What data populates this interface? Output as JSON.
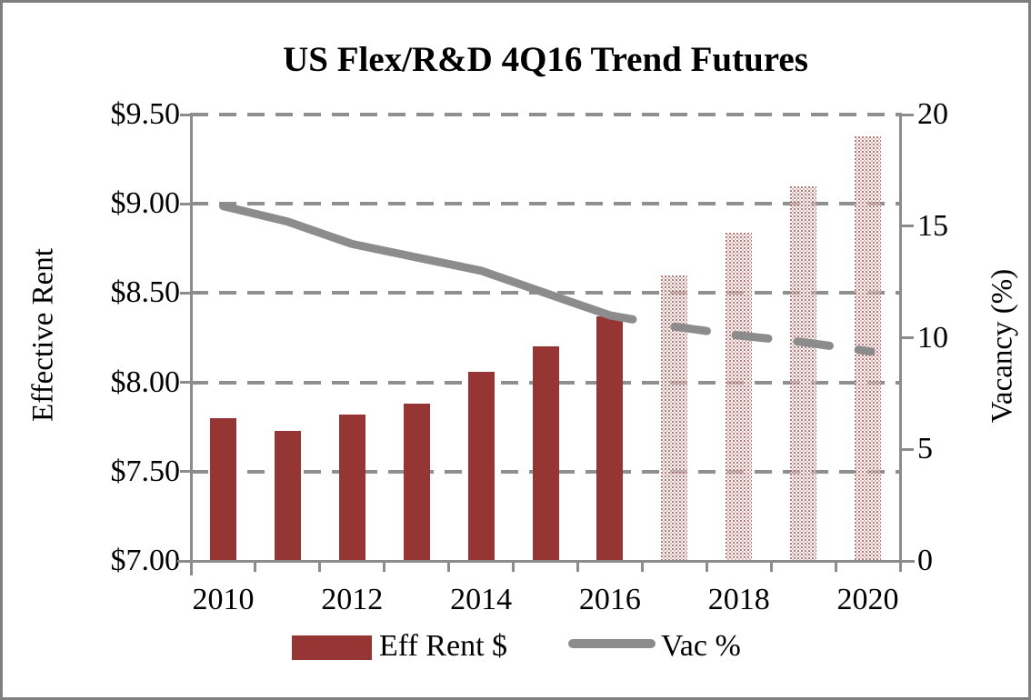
{
  "chart_data": {
    "type": "bar",
    "subtype": "combo-bar-line-dual-axis",
    "title": "US Flex/R&D 4Q16 Trend Futures",
    "categories": [
      2010,
      2011,
      2012,
      2013,
      2014,
      2015,
      2016,
      2017,
      2018,
      2019,
      2020
    ],
    "forecast_start_category": 2017,
    "series": [
      {
        "name": "Eff Rent $",
        "type": "bar",
        "axis": "left",
        "values": [
          7.8,
          7.73,
          7.82,
          7.88,
          8.06,
          8.2,
          8.37,
          8.6,
          8.84,
          9.1,
          9.38
        ],
        "style_actual": "solid",
        "style_forecast": "dotted-pattern"
      },
      {
        "name": "Vac %",
        "type": "line",
        "axis": "right",
        "values": [
          15.9,
          15.2,
          14.2,
          13.6,
          13.0,
          12.0,
          11.0,
          10.5,
          10.1,
          9.8,
          9.4
        ],
        "style_actual": "solid",
        "style_forecast": "dashed"
      }
    ],
    "left_axis": {
      "label": "Effective Rent",
      "min": 7.0,
      "max": 9.5,
      "tick_labels": [
        "$9.50",
        "$9.00",
        "$8.50",
        "$8.00",
        "$7.50",
        "$7.00"
      ],
      "tick_values": [
        9.5,
        9.0,
        8.5,
        8.0,
        7.5,
        7.0
      ]
    },
    "right_axis": {
      "label": "Vacancy (%)",
      "min": 0,
      "max": 20,
      "tick_labels": [
        "20",
        "15",
        "10",
        "5",
        "0"
      ],
      "tick_values": [
        20,
        15,
        10,
        5,
        0
      ]
    },
    "x_axis": {
      "tick_labels": [
        "2010",
        "2012",
        "2014",
        "2016",
        "2018",
        "2020"
      ],
      "labeled_categories": [
        2010,
        2012,
        2014,
        2016,
        2018,
        2020
      ]
    },
    "legend": [
      {
        "label": "Eff Rent $",
        "swatch": "red-bar"
      },
      {
        "label": "Vac %",
        "swatch": "gray-line"
      }
    ],
    "grid": "horizontal-dashed"
  },
  "colors": {
    "bar_red": "#963634",
    "line_gray": "#8c8c8c",
    "grid_gray": "#8f8f8f",
    "border_gray": "#7f7f7f",
    "text_black": "#000000"
  }
}
